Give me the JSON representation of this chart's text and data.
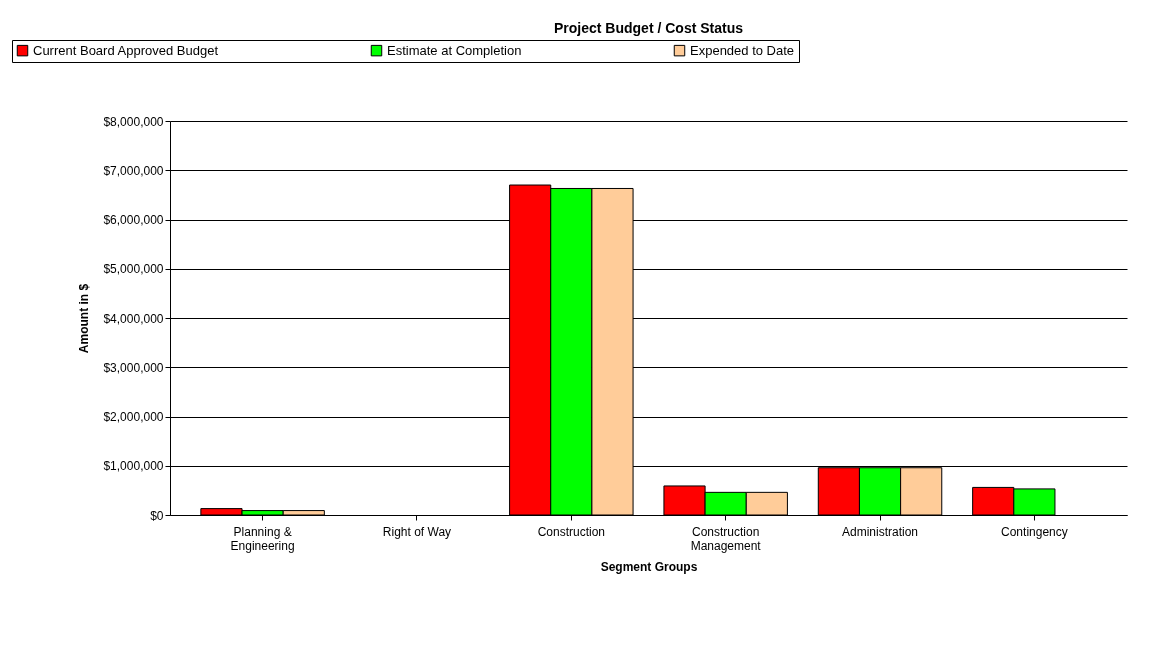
{
  "chart_data": {
    "type": "bar",
    "title": "Project Budget / Cost Status",
    "xlabel": "Segment Groups",
    "ylabel": "Amount in $",
    "categories": [
      "Planning & Engineering",
      "Right of Way",
      "Construction",
      "Construction Management",
      "Administration",
      "Contingency"
    ],
    "series": [
      {
        "name": "Current Board Approved Budget",
        "color": "#ff0000",
        "values": [
          130000,
          null,
          6700000,
          590000,
          960000,
          560000
        ]
      },
      {
        "name": "Estimate at Completion",
        "color": "#00ff00",
        "values": [
          90000,
          null,
          6630000,
          460000,
          960000,
          530000
        ]
      },
      {
        "name": "Expended to Date",
        "color": "#ffcc99",
        "values": [
          90000,
          null,
          6630000,
          460000,
          960000,
          null
        ]
      }
    ],
    "ylim": [
      0,
      8000000
    ],
    "yticks": [
      {
        "value": 0,
        "label": "$0"
      },
      {
        "value": 1000000,
        "label": "$1,000,000"
      },
      {
        "value": 2000000,
        "label": "$2,000,000"
      },
      {
        "value": 3000000,
        "label": "$3,000,000"
      },
      {
        "value": 4000000,
        "label": "$4,000,000"
      },
      {
        "value": 5000000,
        "label": "$5,000,000"
      },
      {
        "value": 6000000,
        "label": "$6,000,000"
      },
      {
        "value": 7000000,
        "label": "$7,000,000"
      },
      {
        "value": 8000000,
        "label": "$8,000,000"
      }
    ],
    "grid": "y",
    "legend": "top"
  }
}
